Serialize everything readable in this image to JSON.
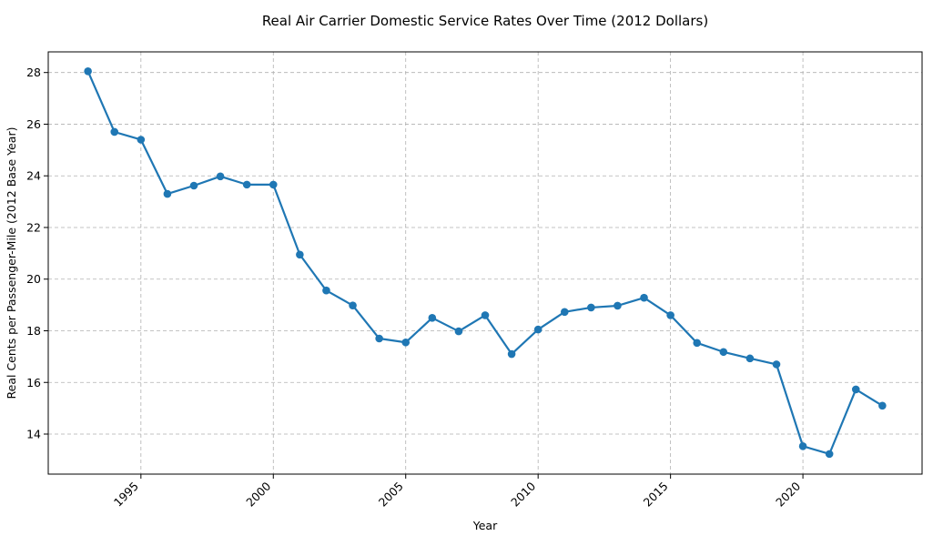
{
  "chart_data": {
    "type": "line",
    "title": "Real Air Carrier Domestic Service Rates Over Time (2012 Dollars)",
    "xlabel": "Year",
    "ylabel": "Real Cents per Passenger-Mile (2012 Base Year)",
    "xlim": [
      1991.5,
      2024.5
    ],
    "ylim": [
      12.45,
      28.8
    ],
    "xticks": [
      1995,
      2000,
      2005,
      2010,
      2015,
      2020
    ],
    "yticks": [
      14,
      16,
      18,
      20,
      22,
      24,
      26,
      28
    ],
    "grid": true,
    "color": "#1f77b4",
    "series": [
      {
        "x": [
          1993,
          1994,
          1995,
          1996,
          1997,
          1998,
          1999,
          2000,
          2001,
          2002,
          2003,
          2004,
          2005,
          2006,
          2007,
          2008,
          2009,
          2010,
          2011,
          2012,
          2013,
          2014,
          2015,
          2016,
          2017,
          2018,
          2019,
          2020,
          2021,
          2022,
          2023
        ],
        "values": [
          28.05,
          25.7,
          25.4,
          23.3,
          23.62,
          23.98,
          23.66,
          23.66,
          20.95,
          19.56,
          18.98,
          17.7,
          17.55,
          18.5,
          17.98,
          18.6,
          17.1,
          18.05,
          18.73,
          18.9,
          18.97,
          19.28,
          18.6,
          17.53,
          17.18,
          16.93,
          16.7,
          13.53,
          13.23,
          15.73,
          15.1
        ]
      }
    ]
  }
}
